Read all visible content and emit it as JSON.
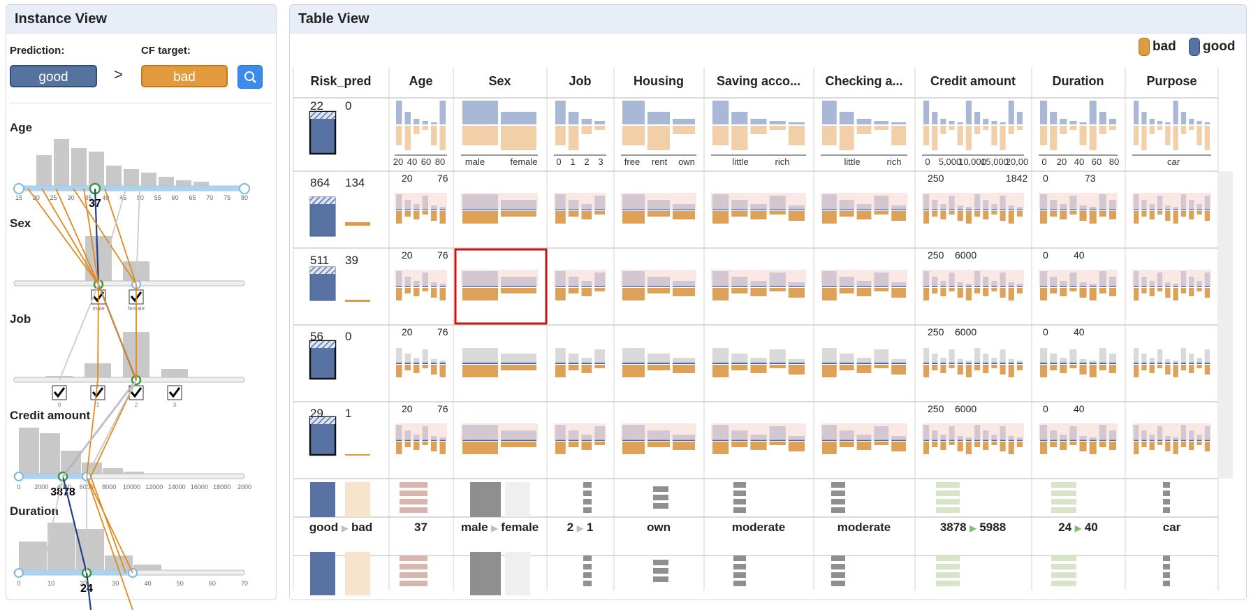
{
  "instance_view": {
    "title": "Instance View",
    "prediction_label": "Prediction:",
    "prediction_value": "good",
    "cf_target_label": "CF target:",
    "cf_target_value": "bad",
    "arrow": ">",
    "features": [
      {
        "name": "Age",
        "ticks": [
          "15",
          "20",
          "25",
          "30",
          "35",
          "40",
          "45",
          "50",
          "55",
          "60",
          "65",
          "70",
          "75",
          "80"
        ],
        "value": "37"
      },
      {
        "name": "Sex",
        "options": [
          "male",
          "female"
        ]
      },
      {
        "name": "Job",
        "options": [
          "0",
          "1",
          "2",
          "3"
        ]
      },
      {
        "name": "Credit amount",
        "ticks": [
          "0",
          "2000",
          "4000",
          "6000",
          "8000",
          "10000",
          "12000",
          "14000",
          "16000",
          "18000",
          "2000"
        ],
        "value": "3878"
      },
      {
        "name": "Duration",
        "ticks": [
          "0",
          "10",
          "20",
          "30",
          "40",
          "50",
          "60",
          "70"
        ],
        "value": "24"
      }
    ]
  },
  "table_view": {
    "title": "Table View",
    "legend": {
      "bad": "bad",
      "good": "good"
    },
    "columns": [
      "Risk_pred",
      "Age",
      "Sex",
      "Job",
      "Housing",
      "Saving acco...",
      "Checking a...",
      "Credit amount",
      "Duration",
      "Purpose"
    ],
    "axis_labels": {
      "age": [
        "20",
        "40",
        "60",
        "80"
      ],
      "sex": [
        "male",
        "female"
      ],
      "job": [
        "0",
        "1",
        "2",
        "3"
      ],
      "housing": [
        "free",
        "rent",
        "own"
      ],
      "saving": [
        "little",
        "rich"
      ],
      "checking": [
        "little",
        "rich"
      ],
      "credit": [
        "0",
        "5,000",
        "10,000",
        "15,000",
        "20,00"
      ],
      "duration": [
        "0",
        "20",
        "40",
        "60",
        "80"
      ],
      "purpose": [
        "car"
      ]
    },
    "rows": [
      {
        "good": "22",
        "bad": "0",
        "age_range": [
          "",
          ""
        ],
        "credit_range": [
          "",
          ""
        ],
        "duration_range": [
          "",
          ""
        ]
      },
      {
        "good": "864",
        "bad": "134",
        "age_range": [
          "20",
          "76"
        ],
        "credit_range": [
          "250",
          "1842"
        ],
        "duration_range": [
          "0",
          "73"
        ]
      },
      {
        "good": "511",
        "bad": "39",
        "age_range": [
          "20",
          "76"
        ],
        "credit_range": [
          "250",
          "6000"
        ],
        "duration_range": [
          "0",
          "40"
        ]
      },
      {
        "good": "56",
        "bad": "0",
        "age_range": [
          "20",
          "76"
        ],
        "credit_range": [
          "250",
          "6000"
        ],
        "duration_range": [
          "0",
          "40"
        ]
      },
      {
        "good": "29",
        "bad": "1",
        "age_range": [
          "20",
          "76"
        ],
        "credit_range": [
          "250",
          "6000"
        ],
        "duration_range": [
          "0",
          "40"
        ]
      }
    ],
    "summary": {
      "risk": [
        "good",
        "bad"
      ],
      "age": "37",
      "sex": [
        "male",
        "female"
      ],
      "job": [
        "2",
        "1"
      ],
      "housing": "own",
      "saving": "moderate",
      "checking": "moderate",
      "credit": [
        "3878",
        "5988"
      ],
      "duration": [
        "24",
        "40"
      ],
      "purpose": "car"
    },
    "chevron": "⌄",
    "colors": {
      "good": "#5873a3",
      "bad": "#e09a3f",
      "highlight": "#cc1111",
      "green": "#4caf50"
    }
  }
}
